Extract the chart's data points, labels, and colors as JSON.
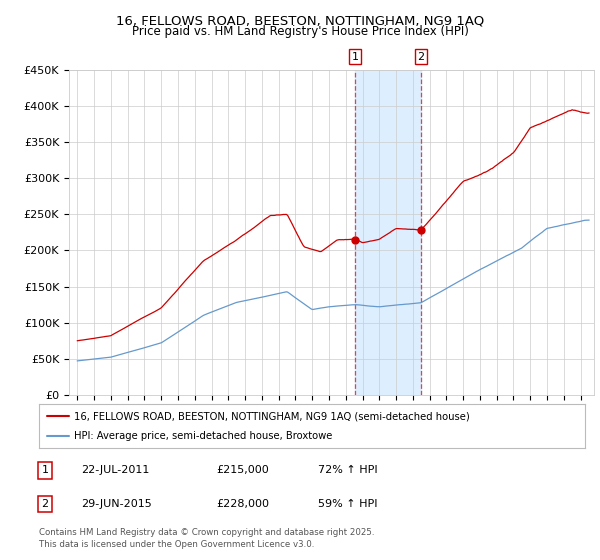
{
  "title1": "16, FELLOWS ROAD, BEESTON, NOTTINGHAM, NG9 1AQ",
  "title2": "Price paid vs. HM Land Registry's House Price Index (HPI)",
  "legend_line1": "16, FELLOWS ROAD, BEESTON, NOTTINGHAM, NG9 1AQ (semi-detached house)",
  "legend_line2": "HPI: Average price, semi-detached house, Broxtowe",
  "sale1_date": "22-JUL-2011",
  "sale1_price": "£215,000",
  "sale1_hpi": "72% ↑ HPI",
  "sale2_date": "29-JUN-2015",
  "sale2_price": "£228,000",
  "sale2_hpi": "59% ↑ HPI",
  "footnote": "Contains HM Land Registry data © Crown copyright and database right 2025.\nThis data is licensed under the Open Government Licence v3.0.",
  "sale1_year": 2011.55,
  "sale2_year": 2015.49,
  "sale1_val": 215000,
  "sale2_val": 228000,
  "red_color": "#cc0000",
  "blue_color": "#6699cc",
  "shade_color": "#ddeeff",
  "ylim": [
    0,
    450000
  ],
  "bg_color": "#ffffff",
  "grid_color": "#cccccc"
}
